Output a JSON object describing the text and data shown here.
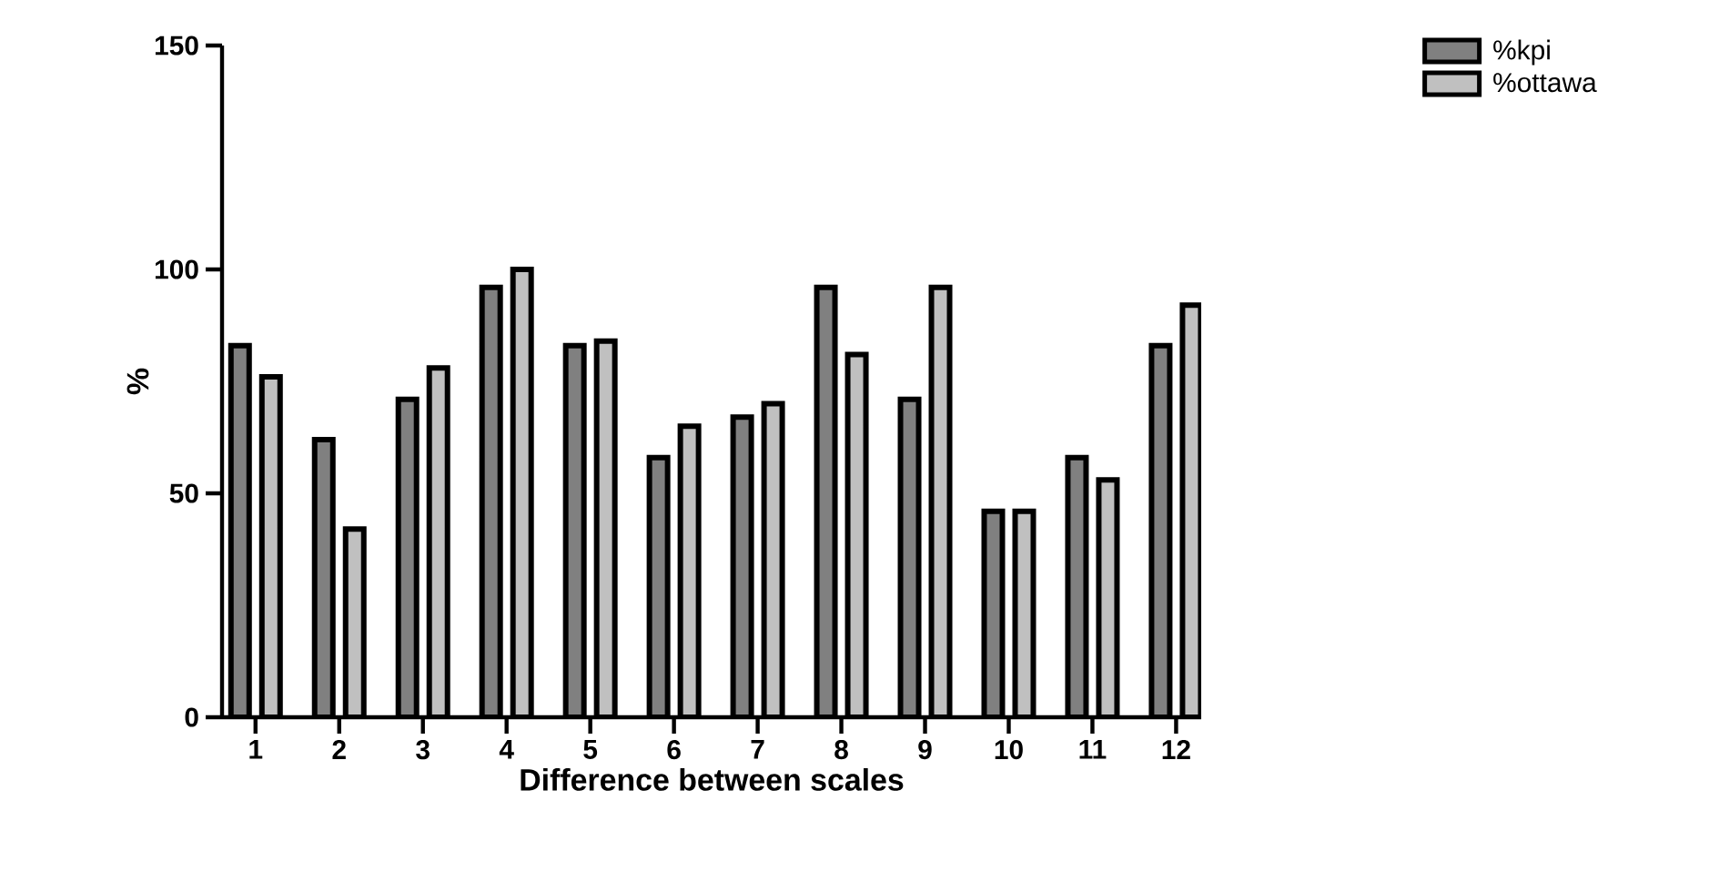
{
  "chart_data": {
    "type": "bar",
    "xlabel": "Difference between scales",
    "ylabel": "%",
    "categories": [
      "1",
      "2",
      "3",
      "4",
      "5",
      "6",
      "7",
      "8",
      "9",
      "10",
      "11",
      "12"
    ],
    "series": [
      {
        "name": "%kpi",
        "color": "#808080",
        "values": [
          83,
          62,
          71,
          96,
          83,
          58,
          67,
          96,
          71,
          46,
          58,
          83
        ]
      },
      {
        "name": "%ottawa",
        "color": "#c0c0c0",
        "values": [
          76,
          42,
          78,
          100,
          84,
          65,
          70,
          81,
          96,
          46,
          53,
          92
        ]
      }
    ],
    "ylim": [
      0,
      150
    ],
    "yticks": [
      0,
      50,
      100,
      150
    ],
    "grid": false,
    "legend": "top right"
  }
}
